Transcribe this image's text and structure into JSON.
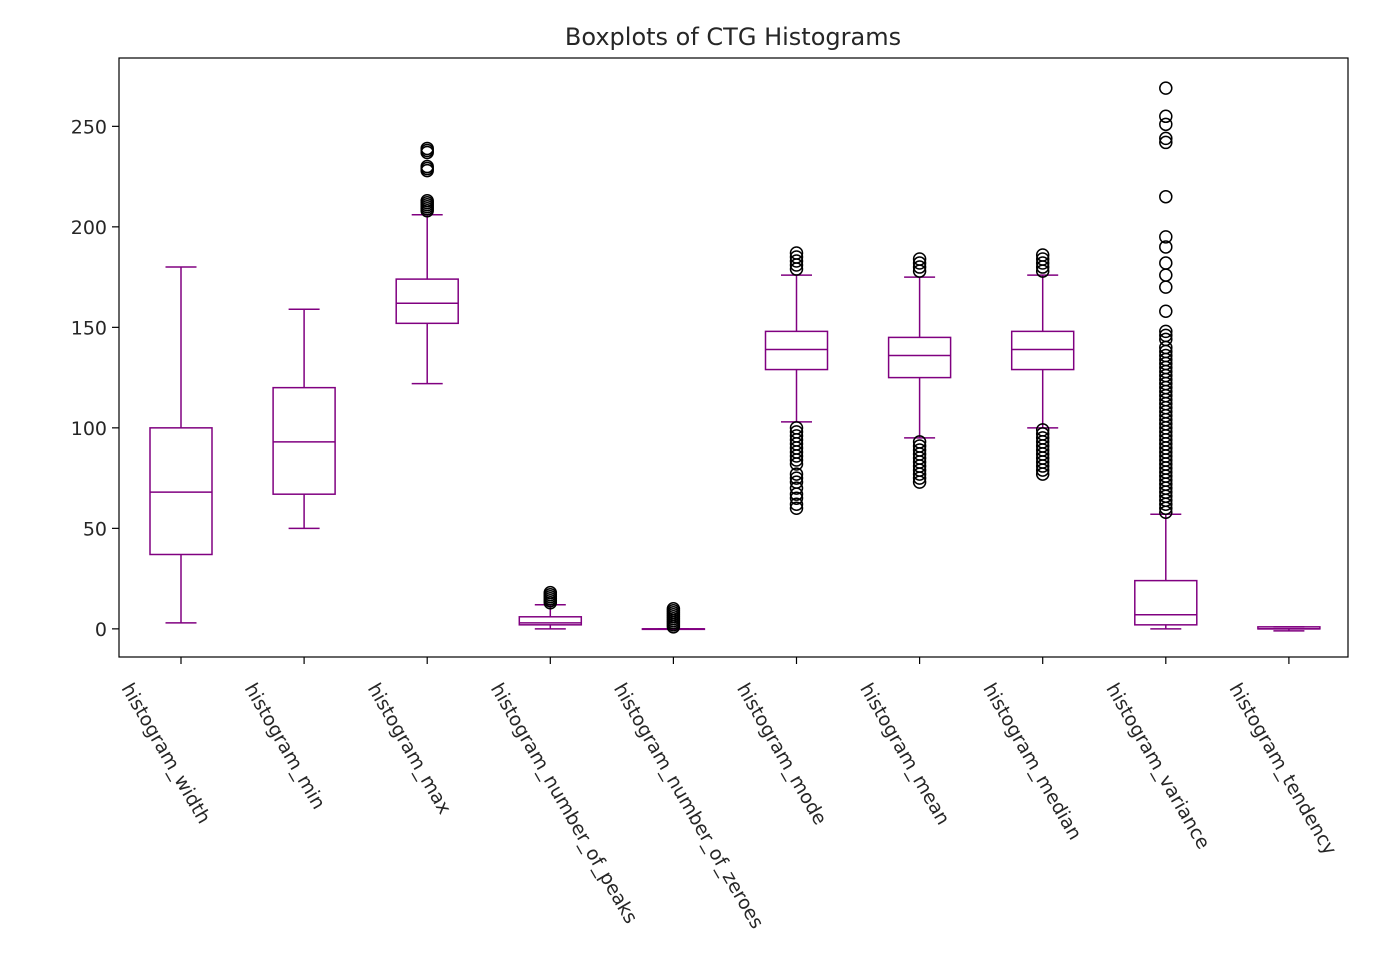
{
  "chart_data": {
    "type": "boxplot",
    "title": "Boxplots of CTG Histograms",
    "xlabel": "",
    "ylabel": "",
    "ylim": [
      -14,
      284
    ],
    "yticks": [
      0,
      50,
      100,
      150,
      200,
      250
    ],
    "grid": false,
    "box_color": "#800080",
    "flier_color": "#000000",
    "categories": [
      "histogram_width",
      "histogram_min",
      "histogram_max",
      "histogram_number_of_peaks",
      "histogram_number_of_zeroes",
      "histogram_mode",
      "histogram_mean",
      "histogram_median",
      "histogram_variance",
      "histogram_tendency"
    ],
    "boxes": [
      {
        "whislo": 3,
        "q1": 37,
        "med": 68,
        "q3": 100,
        "whishi": 180,
        "fliers": []
      },
      {
        "whislo": 50,
        "q1": 67,
        "med": 93,
        "q3": 120,
        "whishi": 159,
        "fliers": []
      },
      {
        "whislo": 122,
        "q1": 152,
        "med": 162,
        "q3": 174,
        "whishi": 206,
        "fliers": [
          208,
          209,
          210,
          211,
          212,
          213,
          228,
          229,
          230,
          237,
          238,
          239
        ]
      },
      {
        "whislo": 0,
        "q1": 2,
        "med": 3,
        "q3": 6,
        "whishi": 12,
        "fliers": [
          13,
          14,
          15,
          16,
          17,
          18
        ]
      },
      {
        "whislo": 0,
        "q1": 0,
        "med": 0,
        "q3": 0,
        "whishi": 0,
        "fliers": [
          1,
          2,
          3,
          4,
          5,
          6,
          7,
          8,
          9,
          10
        ]
      },
      {
        "whislo": 103,
        "q1": 129,
        "med": 139,
        "q3": 148,
        "whishi": 176,
        "fliers": [
          60,
          62,
          65,
          67,
          70,
          73,
          75,
          77,
          82,
          84,
          86,
          88,
          90,
          92,
          94,
          96,
          98,
          100,
          179,
          181,
          183,
          185,
          187
        ]
      },
      {
        "whislo": 95,
        "q1": 125,
        "med": 136,
        "q3": 145,
        "whishi": 175,
        "fliers": [
          73,
          75,
          77,
          79,
          81,
          83,
          85,
          87,
          89,
          91,
          93,
          178,
          180,
          182,
          184
        ]
      },
      {
        "whislo": 100,
        "q1": 129,
        "med": 139,
        "q3": 148,
        "whishi": 176,
        "fliers": [
          77,
          79,
          81,
          83,
          85,
          87,
          89,
          91,
          93,
          95,
          97,
          99,
          178,
          180,
          182,
          184,
          186
        ]
      },
      {
        "whislo": 0,
        "q1": 2,
        "med": 7,
        "q3": 24,
        "whishi": 57,
        "fliers": [
          58,
          60,
          62,
          64,
          66,
          68,
          70,
          72,
          74,
          76,
          78,
          80,
          82,
          84,
          86,
          88,
          90,
          92,
          94,
          96,
          98,
          100,
          102,
          104,
          106,
          108,
          110,
          112,
          114,
          116,
          118,
          120,
          122,
          124,
          126,
          128,
          130,
          132,
          134,
          136,
          138,
          140,
          144,
          146,
          148,
          158,
          170,
          176,
          182,
          190,
          195,
          215,
          242,
          244,
          251,
          255,
          269
        ]
      },
      {
        "whislo": -1,
        "q1": 0,
        "med": 0,
        "q3": 1,
        "whishi": 1,
        "fliers": []
      }
    ]
  }
}
